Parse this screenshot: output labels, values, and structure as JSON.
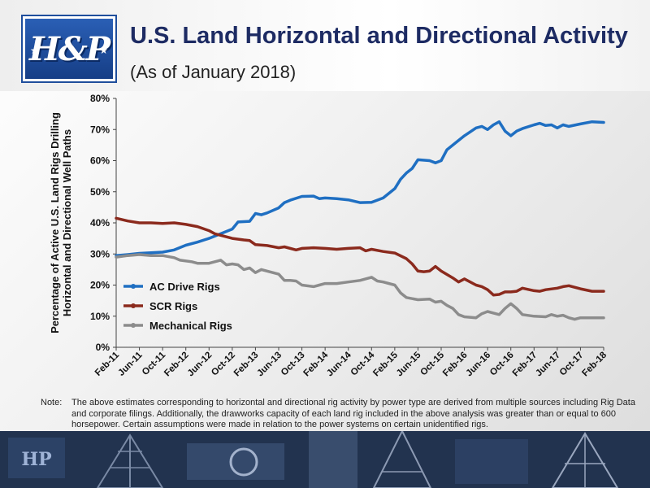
{
  "header": {
    "logo_text": "H&P",
    "title": "U.S. Land Horizontal and Directional Activity",
    "subtitle": "(As of January 2018)"
  },
  "colors": {
    "title": "#1d2b63",
    "ac_drive": "#1f6fc2",
    "scr": "#8b2a1d",
    "mechanical": "#8c8c8c",
    "footer": "#1b2a44"
  },
  "chart_data": {
    "type": "line",
    "title": "",
    "xlabel": "",
    "ylabel": "Percentage of Active U.S. Land Rigs Drilling Horizontal and Directional Well Paths",
    "ylabel_lines": [
      "Percentage of Active U.S. Land Rigs Drilling",
      "Horizontal and Directional Well Paths"
    ],
    "ylim": [
      0,
      80
    ],
    "yticks": [
      0,
      10,
      20,
      30,
      40,
      50,
      60,
      70,
      80
    ],
    "ytick_labels": [
      "0%",
      "10%",
      "20%",
      "30%",
      "40%",
      "50%",
      "60%",
      "70%",
      "80%"
    ],
    "x_range": [
      "Feb-11",
      "Feb-18"
    ],
    "xtick_labels": [
      "Feb-11",
      "Jun-11",
      "Oct-11",
      "Feb-12",
      "Jun-12",
      "Oct-12",
      "Feb-13",
      "Jun-13",
      "Oct-13",
      "Feb-14",
      "Jun-14",
      "Oct-14",
      "Feb-15",
      "Jun-15",
      "Oct-15",
      "Feb-16",
      "Jun-16",
      "Oct-16",
      "Feb-17",
      "Jun-17",
      "Oct-17",
      "Feb-18"
    ],
    "grid": false,
    "legend_position": "bottom-left",
    "series": [
      {
        "name": "AC Drive Rigs",
        "color": "#1f6fc2",
        "points": [
          [
            "Feb-11",
            29.5
          ],
          [
            "Apr-11",
            29.8
          ],
          [
            "Jun-11",
            30.2
          ],
          [
            "Aug-11",
            30.4
          ],
          [
            "Oct-11",
            30.6
          ],
          [
            "Dec-11",
            31.3
          ],
          [
            "Feb-12",
            32.8
          ],
          [
            "Apr-12",
            33.8
          ],
          [
            "Jun-12",
            35.0
          ],
          [
            "Aug-12",
            36.5
          ],
          [
            "Oct-12",
            38.0
          ],
          [
            "Nov-12",
            40.3
          ],
          [
            "Jan-13",
            40.5
          ],
          [
            "Feb-13",
            43.0
          ],
          [
            "Mar-13",
            42.6
          ],
          [
            "Apr-13",
            43.2
          ],
          [
            "Jun-13",
            44.8
          ],
          [
            "Jul-13",
            46.5
          ],
          [
            "Aug-13",
            47.3
          ],
          [
            "Oct-13",
            48.5
          ],
          [
            "Dec-13",
            48.6
          ],
          [
            "Jan-14",
            47.8
          ],
          [
            "Feb-14",
            48.0
          ],
          [
            "Apr-14",
            47.8
          ],
          [
            "Jun-14",
            47.4
          ],
          [
            "Aug-14",
            46.5
          ],
          [
            "Oct-14",
            46.6
          ],
          [
            "Dec-14",
            48.0
          ],
          [
            "Feb-15",
            51.0
          ],
          [
            "Mar-15",
            54.0
          ],
          [
            "Apr-15",
            56.0
          ],
          [
            "May-15",
            57.5
          ],
          [
            "Jun-15",
            60.3
          ],
          [
            "Aug-15",
            60.0
          ],
          [
            "Sep-15",
            59.3
          ],
          [
            "Oct-15",
            60.0
          ],
          [
            "Nov-15",
            63.5
          ],
          [
            "Jan-16",
            66.5
          ],
          [
            "Feb-16",
            68.0
          ],
          [
            "Apr-16",
            70.5
          ],
          [
            "May-16",
            71.0
          ],
          [
            "Jun-16",
            70.0
          ],
          [
            "Jul-16",
            71.5
          ],
          [
            "Aug-16",
            72.5
          ],
          [
            "Sep-16",
            69.5
          ],
          [
            "Oct-16",
            68.0
          ],
          [
            "Nov-16",
            69.5
          ],
          [
            "Dec-16",
            70.3
          ],
          [
            "Feb-17",
            71.5
          ],
          [
            "Mar-17",
            72.0
          ],
          [
            "Apr-17",
            71.3
          ],
          [
            "May-17",
            71.5
          ],
          [
            "Jun-17",
            70.5
          ],
          [
            "Jul-17",
            71.5
          ],
          [
            "Aug-17",
            71.0
          ],
          [
            "Oct-17",
            71.8
          ],
          [
            "Dec-17",
            72.5
          ],
          [
            "Jan-18",
            72.4
          ],
          [
            "Feb-18",
            72.3
          ]
        ]
      },
      {
        "name": "SCR Rigs",
        "color": "#8b2a1d",
        "points": [
          [
            "Feb-11",
            41.5
          ],
          [
            "Apr-11",
            40.6
          ],
          [
            "Jun-11",
            40.0
          ],
          [
            "Aug-11",
            40.0
          ],
          [
            "Oct-11",
            39.8
          ],
          [
            "Dec-11",
            40.0
          ],
          [
            "Feb-12",
            39.5
          ],
          [
            "Apr-12",
            38.8
          ],
          [
            "Jun-12",
            37.5
          ],
          [
            "Jul-12",
            36.5
          ],
          [
            "Aug-12",
            36.0
          ],
          [
            "Oct-12",
            35.0
          ],
          [
            "Dec-12",
            34.5
          ],
          [
            "Jan-13",
            34.3
          ],
          [
            "Feb-13",
            33.0
          ],
          [
            "Apr-13",
            32.7
          ],
          [
            "Jun-13",
            32.0
          ],
          [
            "Jul-13",
            32.3
          ],
          [
            "Sep-13",
            31.3
          ],
          [
            "Oct-13",
            31.8
          ],
          [
            "Dec-13",
            32.0
          ],
          [
            "Feb-14",
            31.8
          ],
          [
            "Apr-14",
            31.5
          ],
          [
            "Jun-14",
            31.8
          ],
          [
            "Aug-14",
            32.0
          ],
          [
            "Sep-14",
            31.0
          ],
          [
            "Oct-14",
            31.5
          ],
          [
            "Dec-14",
            30.8
          ],
          [
            "Feb-15",
            30.3
          ],
          [
            "Apr-15",
            28.5
          ],
          [
            "May-15",
            26.8
          ],
          [
            "Jun-15",
            24.5
          ],
          [
            "Jul-15",
            24.3
          ],
          [
            "Aug-15",
            24.5
          ],
          [
            "Sep-15",
            26.0
          ],
          [
            "Oct-15",
            24.5
          ],
          [
            "Dec-15",
            22.3
          ],
          [
            "Jan-16",
            21.0
          ],
          [
            "Feb-16",
            22.0
          ],
          [
            "Apr-16",
            20.0
          ],
          [
            "May-16",
            19.5
          ],
          [
            "Jun-16",
            18.5
          ],
          [
            "Jul-16",
            16.8
          ],
          [
            "Aug-16",
            17.0
          ],
          [
            "Sep-16",
            17.8
          ],
          [
            "Oct-16",
            17.8
          ],
          [
            "Nov-16",
            18.0
          ],
          [
            "Dec-16",
            19.0
          ],
          [
            "Feb-17",
            18.2
          ],
          [
            "Mar-17",
            18.0
          ],
          [
            "Apr-17",
            18.5
          ],
          [
            "Jun-17",
            19.0
          ],
          [
            "Jul-17",
            19.5
          ],
          [
            "Aug-17",
            19.8
          ],
          [
            "Oct-17",
            18.8
          ],
          [
            "Dec-17",
            18.0
          ],
          [
            "Feb-18",
            18.0
          ]
        ]
      },
      {
        "name": "Mechanical Rigs",
        "color": "#8c8c8c",
        "points": [
          [
            "Feb-11",
            29.0
          ],
          [
            "Apr-11",
            29.5
          ],
          [
            "Jun-11",
            29.8
          ],
          [
            "Aug-11",
            29.5
          ],
          [
            "Oct-11",
            29.5
          ],
          [
            "Dec-11",
            28.8
          ],
          [
            "Jan-12",
            28.0
          ],
          [
            "Mar-12",
            27.5
          ],
          [
            "Apr-12",
            27.0
          ],
          [
            "Jun-12",
            27.0
          ],
          [
            "Aug-12",
            28.0
          ],
          [
            "Sep-12",
            26.5
          ],
          [
            "Oct-12",
            26.8
          ],
          [
            "Nov-12",
            26.5
          ],
          [
            "Dec-12",
            25.0
          ],
          [
            "Jan-13",
            25.5
          ],
          [
            "Feb-13",
            24.0
          ],
          [
            "Mar-13",
            25.0
          ],
          [
            "Apr-13",
            24.5
          ],
          [
            "Jun-13",
            23.5
          ],
          [
            "Jul-13",
            21.5
          ],
          [
            "Aug-13",
            21.5
          ],
          [
            "Sep-13",
            21.3
          ],
          [
            "Oct-13",
            20.0
          ],
          [
            "Dec-13",
            19.5
          ],
          [
            "Jan-14",
            20.0
          ],
          [
            "Feb-14",
            20.5
          ],
          [
            "Apr-14",
            20.5
          ],
          [
            "Jun-14",
            21.0
          ],
          [
            "Aug-14",
            21.5
          ],
          [
            "Oct-14",
            22.5
          ],
          [
            "Nov-14",
            21.3
          ],
          [
            "Dec-14",
            21.0
          ],
          [
            "Feb-15",
            20.0
          ],
          [
            "Mar-15",
            17.5
          ],
          [
            "Apr-15",
            16.0
          ],
          [
            "Jun-15",
            15.3
          ],
          [
            "Aug-15",
            15.5
          ],
          [
            "Sep-15",
            14.5
          ],
          [
            "Oct-15",
            14.8
          ],
          [
            "Nov-15",
            13.5
          ],
          [
            "Dec-15",
            12.5
          ],
          [
            "Jan-16",
            10.5
          ],
          [
            "Feb-16",
            9.8
          ],
          [
            "Apr-16",
            9.5
          ],
          [
            "May-16",
            10.8
          ],
          [
            "Jun-16",
            11.5
          ],
          [
            "Jul-16",
            11.0
          ],
          [
            "Aug-16",
            10.5
          ],
          [
            "Sep-16",
            12.5
          ],
          [
            "Oct-16",
            14.0
          ],
          [
            "Nov-16",
            12.5
          ],
          [
            "Dec-16",
            10.5
          ],
          [
            "Feb-17",
            10.0
          ],
          [
            "Apr-17",
            9.8
          ],
          [
            "May-17",
            10.5
          ],
          [
            "Jun-17",
            10.0
          ],
          [
            "Jul-17",
            10.3
          ],
          [
            "Aug-17",
            9.5
          ],
          [
            "Sep-17",
            9.0
          ],
          [
            "Oct-17",
            9.5
          ],
          [
            "Dec-17",
            9.5
          ],
          [
            "Feb-18",
            9.5
          ]
        ]
      }
    ]
  },
  "note": {
    "label": "Note:",
    "text": "The above estimates corresponding to horizontal and directional rig activity by power type are derived from multiple sources including Rig Data and corporate filings.  Additionally, the drawworks capacity of each land rig included in the above analysis was greater than or equal to 600 horsepower.  Certain assumptions were made in relation to the power systems on certain unidentified rigs."
  }
}
